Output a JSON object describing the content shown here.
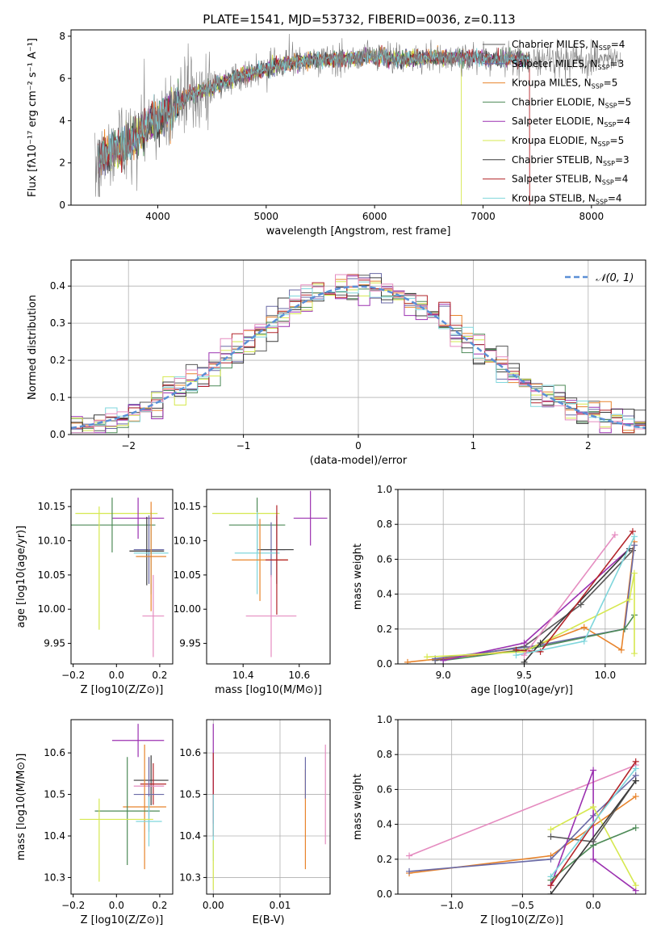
{
  "title": "PLATE=1541, MJD=53732, FIBERID=0036, z=0.113",
  "chart_data": [
    {
      "id": "spectrum",
      "type": "line",
      "title": "PLATE=1541, MJD=53732, FIBERID=0036, z=0.113",
      "xlabel": "wavelength [Angstrom, rest frame]",
      "ylabel": "Flux [fλ10⁻¹⁷ erg cm⁻² s⁻¹ A⁻¹]",
      "xlim": [
        3200,
        8500
      ],
      "ylim": [
        0,
        8.3
      ],
      "xticks": [
        4000,
        5000,
        6000,
        7000,
        8000
      ],
      "yticks": [
        0,
        2,
        4,
        6,
        8
      ],
      "grid": false,
      "legend_position": "right",
      "series": [
        {
          "name": "Chabrier MILES, N_SSP=4",
          "color": "#5a5a5a"
        },
        {
          "name": "Salpeter MILES, N_SSP=3",
          "color": "#6a6aa6"
        },
        {
          "name": "Kroupa MILES, N_SSP=5",
          "color": "#e8842c"
        },
        {
          "name": "Chabrier ELODIE, N_SSP=5",
          "color": "#4d8a57"
        },
        {
          "name": "Salpeter ELODIE, N_SSP=4",
          "color": "#9b30b0"
        },
        {
          "name": "Kroupa ELODIE, N_SSP=5",
          "color": "#d6e84f"
        },
        {
          "name": "Chabrier STELIB, N_SSP=3",
          "color": "#3a3a3a"
        },
        {
          "name": "Salpeter STELIB, N_SSP=4",
          "color": "#b3252a"
        },
        {
          "name": "Kroupa STELIB, N_SSP=4",
          "color": "#7fd6dc"
        }
      ],
      "continuum_shape": {
        "x": [
          3450,
          3600,
          3800,
          3950,
          4100,
          4300,
          4500,
          4700,
          4900,
          5100,
          5300,
          5500,
          5700,
          5900,
          6100,
          6300,
          6500,
          6700,
          6900,
          7100,
          7300
        ],
        "y": [
          2.2,
          2.6,
          3.2,
          3.9,
          4.5,
          5.2,
          5.6,
          6.0,
          6.3,
          6.6,
          6.8,
          6.9,
          6.9,
          7.0,
          7.0,
          6.9,
          7.0,
          7.0,
          7.0,
          6.9,
          6.9
        ]
      },
      "observed_range": [
        3420,
        8270
      ],
      "model_range": [
        3450,
        7430
      ]
    },
    {
      "id": "residuals",
      "type": "bar",
      "xlabel": "(data-model)/error",
      "ylabel": "Normed distribution",
      "xlim": [
        -2.5,
        2.5
      ],
      "ylim": [
        0,
        0.47
      ],
      "xticks": [
        -2,
        -1,
        0,
        1,
        2
      ],
      "yticks": [
        0.0,
        0.1,
        0.2,
        0.3,
        0.4
      ],
      "grid": true,
      "legend_position": "top-right",
      "reference_curve": {
        "name": "𝒩(0, 1)",
        "color": "#5b8fd6"
      },
      "bin_width": 0.1
    },
    {
      "id": "age-vs-Z",
      "type": "scatter",
      "xlabel": "Z [log10(Z/Z⊙)]",
      "ylabel": "age  [log10(age/yr)]",
      "xlim": [
        -0.21,
        0.26
      ],
      "ylim": [
        9.92,
        10.175
      ],
      "xticks": [
        -0.2,
        0.0,
        0.2
      ],
      "yticks": [
        9.95,
        10.0,
        10.05,
        10.1,
        10.15
      ],
      "grid": false,
      "points": [
        {
          "x": 0.0,
          "y": 10.14,
          "xerr": 0.19,
          "yerr": 0.0,
          "color": "#d6e84f"
        },
        {
          "x": 0.1,
          "y": 10.133,
          "xerr": 0.12,
          "yerr": 0.03,
          "color": "#9b30b0"
        },
        {
          "x": -0.02,
          "y": 10.123,
          "xerr": 0.2,
          "yerr": 0.04,
          "color": "#4d8a57"
        },
        {
          "x": 0.15,
          "y": 10.087,
          "xerr": 0.07,
          "yerr": 0.05,
          "color": "#6a6aa6"
        },
        {
          "x": 0.14,
          "y": 10.085,
          "xerr": 0.08,
          "yerr": 0.05,
          "color": "#3a3a3a"
        },
        {
          "x": 0.16,
          "y": 10.082,
          "xerr": 0.08,
          "yerr": 0.06,
          "color": "#7fd6dc"
        },
        {
          "x": 0.16,
          "y": 10.077,
          "xerr": 0.07,
          "yerr": 0.08,
          "color": "#e8842c"
        },
        {
          "x": 0.17,
          "y": 9.99,
          "xerr": 0.05,
          "yerr": 0.06,
          "color": "#e58cc0"
        },
        {
          "x": -0.08,
          "y": 10.06,
          "xerr": 0.0,
          "yerr": 0.09,
          "color": "#d6e84f"
        }
      ]
    },
    {
      "id": "age-vs-mass",
      "type": "scatter",
      "xlabel": "mass [log10(M/M⊙)]",
      "ylabel": "",
      "xlim": [
        10.27,
        10.71
      ],
      "ylim": [
        9.92,
        10.175
      ],
      "xticks": [
        10.4,
        10.6
      ],
      "yticks": [
        9.95,
        10.0,
        10.05,
        10.1,
        10.15
      ],
      "grid": false,
      "points": [
        {
          "x": 10.41,
          "y": 10.14,
          "xerr": 0.12,
          "yerr": 0.0,
          "color": "#d6e84f"
        },
        {
          "x": 10.64,
          "y": 10.133,
          "xerr": 0.06,
          "yerr": 0.04,
          "color": "#9b30b0"
        },
        {
          "x": 10.45,
          "y": 10.123,
          "xerr": 0.1,
          "yerr": 0.04,
          "color": "#4d8a57"
        },
        {
          "x": 10.5,
          "y": 10.087,
          "xerr": 0.05,
          "yerr": 0.04,
          "color": "#6a6aa6"
        },
        {
          "x": 10.52,
          "y": 10.087,
          "xerr": 0.06,
          "yerr": 0.05,
          "color": "#3a3a3a"
        },
        {
          "x": 10.45,
          "y": 10.082,
          "xerr": 0.08,
          "yerr": 0.06,
          "color": "#7fd6dc"
        },
        {
          "x": 10.46,
          "y": 10.072,
          "xerr": 0.1,
          "yerr": 0.06,
          "color": "#e8842c"
        },
        {
          "x": 10.52,
          "y": 10.072,
          "xerr": 0.04,
          "yerr": 0.08,
          "color": "#b3252a"
        },
        {
          "x": 10.5,
          "y": 9.99,
          "xerr": 0.09,
          "yerr": 0.06,
          "color": "#e58cc0"
        }
      ]
    },
    {
      "id": "massweight-vs-age",
      "type": "line",
      "xlabel": "age  [log10(age/yr)]",
      "ylabel": "mass weight",
      "xlim": [
        8.72,
        10.25
      ],
      "ylim": [
        0,
        1
      ],
      "xticks": [
        9.0,
        9.5,
        10.0
      ],
      "yticks": [
        0.0,
        0.2,
        0.4,
        0.6,
        0.8,
        1.0
      ],
      "grid": true,
      "series": [
        {
          "color": "#5a5a5a",
          "points": [
            [
              8.95,
              0.02
            ],
            [
              9.5,
              0.1
            ],
            [
              9.85,
              0.34
            ],
            [
              10.17,
              0.65
            ]
          ]
        },
        {
          "color": "#e8842c",
          "points": [
            [
              8.78,
              0.01
            ],
            [
              9.5,
              0.08
            ],
            [
              9.87,
              0.21
            ],
            [
              10.1,
              0.08
            ],
            [
              10.18,
              0.7
            ]
          ]
        },
        {
          "color": "#6a6aa6",
          "points": [
            [
              8.95,
              0.03
            ],
            [
              9.55,
              0.1
            ],
            [
              10.12,
              0.2
            ],
            [
              10.18,
              0.68
            ]
          ]
        },
        {
          "color": "#4d8a57",
          "points": [
            [
              9.0,
              0.02
            ],
            [
              9.5,
              0.08
            ],
            [
              10.12,
              0.2
            ],
            [
              10.18,
              0.28
            ]
          ]
        },
        {
          "color": "#9b30b0",
          "points": [
            [
              9.0,
              0.02
            ],
            [
              9.5,
              0.12
            ],
            [
              10.15,
              0.66
            ]
          ]
        },
        {
          "color": "#d6e84f",
          "points": [
            [
              8.9,
              0.04
            ],
            [
              9.5,
              0.07
            ],
            [
              10.15,
              0.37
            ],
            [
              10.18,
              0.52
            ],
            [
              10.18,
              0.06
            ]
          ]
        },
        {
          "color": "#3a3a3a",
          "points": [
            [
              9.5,
              0.01
            ],
            [
              9.6,
              0.12
            ],
            [
              10.15,
              0.66
            ]
          ]
        },
        {
          "color": "#b3252a",
          "points": [
            [
              9.45,
              0.08
            ],
            [
              9.6,
              0.07
            ],
            [
              10.17,
              0.76
            ]
          ]
        },
        {
          "color": "#7fd6dc",
          "points": [
            [
              9.45,
              0.05
            ],
            [
              9.87,
              0.13
            ],
            [
              10.18,
              0.73
            ]
          ]
        },
        {
          "color": "#e58cc0",
          "points": [
            [
              9.5,
              0.05
            ],
            [
              10.06,
              0.74
            ]
          ]
        }
      ]
    },
    {
      "id": "mass-vs-Z",
      "type": "scatter",
      "xlabel": "Z [log10(Z/Z⊙)]",
      "ylabel": "mass [log10(M/M⊙)]",
      "xlim": [
        -0.21,
        0.26
      ],
      "ylim": [
        10.26,
        10.68
      ],
      "xticks": [
        -0.2,
        0.0,
        0.2
      ],
      "yticks": [
        10.3,
        10.4,
        10.5,
        10.6
      ],
      "grid": false,
      "points": [
        {
          "x": 0.1,
          "y": 10.63,
          "xerr": 0.12,
          "yerr": 0.04,
          "color": "#9b30b0"
        },
        {
          "x": 0.16,
          "y": 10.534,
          "xerr": 0.08,
          "yerr": 0.06,
          "color": "#3a3a3a"
        },
        {
          "x": 0.17,
          "y": 10.525,
          "xerr": 0.06,
          "yerr": 0.05,
          "color": "#b3252a"
        },
        {
          "x": 0.15,
          "y": 10.52,
          "xerr": 0.07,
          "yerr": 0.07,
          "color": "#e58cc0"
        },
        {
          "x": 0.15,
          "y": 10.5,
          "xerr": 0.07,
          "yerr": 0.09,
          "color": "#6a6aa6"
        },
        {
          "x": 0.13,
          "y": 10.47,
          "xerr": 0.1,
          "yerr": 0.15,
          "color": "#e8842c"
        },
        {
          "x": 0.05,
          "y": 10.46,
          "xerr": 0.15,
          "yerr": 0.13,
          "color": "#4d8a57"
        },
        {
          "x": 0.15,
          "y": 10.435,
          "xerr": 0.06,
          "yerr": 0.06,
          "color": "#7fd6dc"
        },
        {
          "x": 0.0,
          "y": 10.44,
          "xerr": 0.17,
          "yerr": 0.0,
          "color": "#d6e84f"
        },
        {
          "x": -0.08,
          "y": 10.39,
          "xerr": 0.0,
          "yerr": 0.1,
          "color": "#d6e84f"
        }
      ]
    },
    {
      "id": "mass-vs-EBV",
      "type": "scatter",
      "xlabel": "E(B-V)",
      "ylabel": "",
      "xlim": [
        -0.001,
        0.0175
      ],
      "ylim": [
        10.26,
        10.68
      ],
      "xticks": [
        0.0,
        0.01
      ],
      "yticks": [
        10.3,
        10.4,
        10.5,
        10.6
      ],
      "grid": true,
      "points": [
        {
          "x": 0.0,
          "y": 10.55,
          "xerr": 0,
          "yerr": 0.12,
          "color": "#9b30b0"
        },
        {
          "x": 0.0,
          "y": 10.5,
          "xerr": 0,
          "yerr": 0.1,
          "color": "#b3252a"
        },
        {
          "x": 0.0,
          "y": 10.42,
          "xerr": 0,
          "yerr": 0.08,
          "color": "#7fd6dc"
        },
        {
          "x": 0.0,
          "y": 10.33,
          "xerr": 0,
          "yerr": 0.06,
          "color": "#d6e84f"
        },
        {
          "x": 0.0138,
          "y": 10.44,
          "xerr": 0,
          "yerr": 0.12,
          "color": "#e8842c"
        },
        {
          "x": 0.0138,
          "y": 10.54,
          "xerr": 0,
          "yerr": 0.05,
          "color": "#6a6aa6"
        },
        {
          "x": 0.0168,
          "y": 10.5,
          "xerr": 0,
          "yerr": 0.12,
          "color": "#e58cc0"
        }
      ]
    },
    {
      "id": "massweight-vs-Z",
      "type": "line",
      "xlabel": "Z [log10(Z/Z⊙)]",
      "ylabel": "mass weight",
      "xlim": [
        -1.38,
        0.37
      ],
      "ylim": [
        0,
        1
      ],
      "xticks": [
        -1.0,
        -0.5,
        0.0
      ],
      "yticks": [
        0.0,
        0.2,
        0.4,
        0.6,
        0.8,
        1.0
      ],
      "grid": true,
      "series": [
        {
          "color": "#e58cc0",
          "points": [
            [
              -1.3,
              0.22
            ],
            [
              0.3,
              0.74
            ]
          ]
        },
        {
          "color": "#e8842c",
          "points": [
            [
              -1.3,
              0.12
            ],
            [
              -0.3,
              0.22
            ],
            [
              0.3,
              0.56
            ]
          ]
        },
        {
          "color": "#6a6aa6",
          "points": [
            [
              -1.3,
              0.13
            ],
            [
              -0.3,
              0.2
            ],
            [
              0.0,
              0.45
            ],
            [
              0.3,
              0.68
            ]
          ]
        },
        {
          "color": "#9b30b0",
          "points": [
            [
              -0.3,
              0.05
            ],
            [
              0.0,
              0.71
            ],
            [
              0.0,
              0.2
            ],
            [
              0.3,
              0.02
            ]
          ]
        },
        {
          "color": "#d6e84f",
          "points": [
            [
              -0.3,
              0.37
            ],
            [
              0.0,
              0.5
            ],
            [
              0.3,
              0.05
            ]
          ]
        },
        {
          "color": "#4d8a57",
          "points": [
            [
              -0.3,
              0.08
            ],
            [
              0.0,
              0.28
            ],
            [
              0.3,
              0.38
            ]
          ]
        },
        {
          "color": "#5a5a5a",
          "points": [
            [
              -0.3,
              0.33
            ],
            [
              0.0,
              0.3
            ],
            [
              0.3,
              0.65
            ]
          ]
        },
        {
          "color": "#3a3a3a",
          "points": [
            [
              -0.3,
              0.0
            ],
            [
              0.3,
              0.65
            ]
          ]
        },
        {
          "color": "#b3252a",
          "points": [
            [
              -0.3,
              0.05
            ],
            [
              0.3,
              0.76
            ]
          ]
        },
        {
          "color": "#7fd6dc",
          "points": [
            [
              -0.3,
              0.1
            ],
            [
              0.3,
              0.72
            ]
          ]
        }
      ]
    }
  ]
}
